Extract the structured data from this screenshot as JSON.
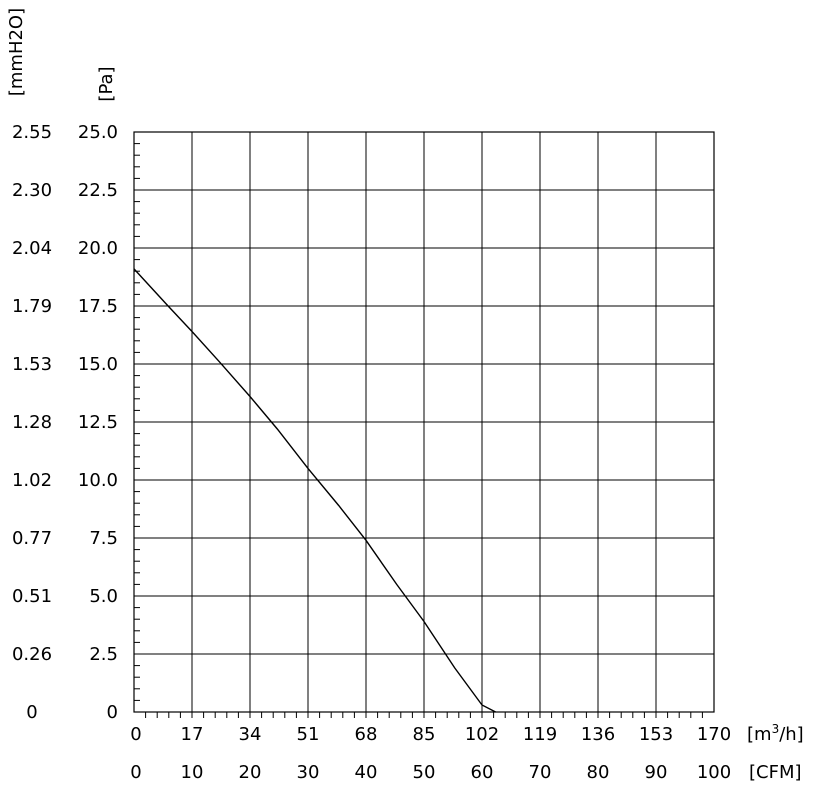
{
  "chart_data": {
    "type": "line",
    "title": "",
    "y_unit_mmh2o": "[mmH2O]",
    "y_unit_pa": "[Pa]",
    "x_unit_m3h": "[m3/h]",
    "x_unit_cfm": "[CFM]",
    "y_ticks_pa": [
      "0",
      "2.5",
      "5.0",
      "7.5",
      "10.0",
      "12.5",
      "15.0",
      "17.5",
      "20.0",
      "22.5",
      "25.0"
    ],
    "y_ticks_mmh2o": [
      "0",
      "0.26",
      "0.51",
      "0.77",
      "1.02",
      "1.28",
      "1.53",
      "1.79",
      "2.04",
      "2.30",
      "2.55"
    ],
    "x_ticks_m3h": [
      "0",
      "17",
      "34",
      "51",
      "68",
      "85",
      "102",
      "119",
      "136",
      "153",
      "170"
    ],
    "x_ticks_cfm": [
      "0",
      "10",
      "20",
      "30",
      "40",
      "50",
      "60",
      "70",
      "80",
      "90",
      "100"
    ],
    "xlim_m3h": [
      0,
      170
    ],
    "ylim_pa": [
      0,
      25
    ],
    "grid": true,
    "series": [
      {
        "x_m3h": [
          0,
          10,
          17,
          25,
          34,
          42,
          51,
          60,
          68,
          77,
          85,
          94,
          102,
          106
        ],
        "y_pa": [
          19.1,
          17.5,
          16.4,
          15.1,
          13.6,
          12.2,
          10.5,
          8.9,
          7.4,
          5.5,
          3.9,
          1.9,
          0.3,
          0
        ]
      }
    ]
  }
}
